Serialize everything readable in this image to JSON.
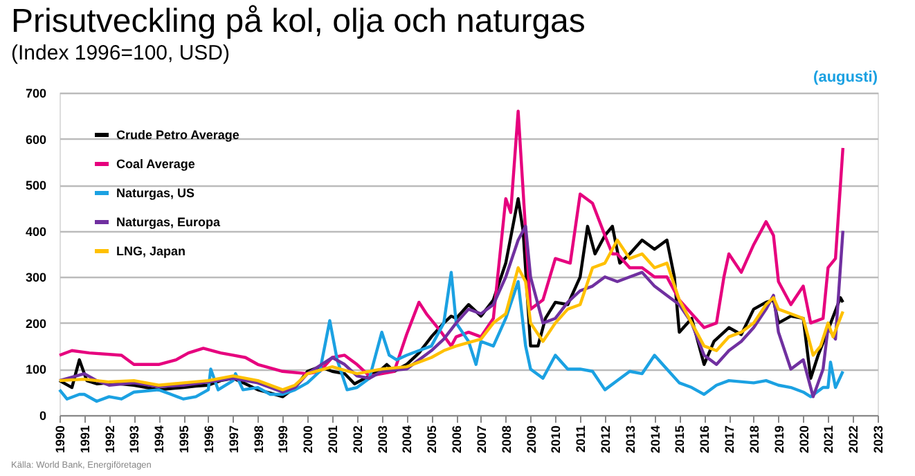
{
  "chart_data": {
    "type": "line",
    "title": "Prisutveckling på kol, olja och naturgas",
    "subtitle": "(Index 1996=100, USD)",
    "annotations": [
      "(augusti)",
      "Källa: World Bank, Energiföretagen"
    ],
    "xlim": [
      1990,
      2023
    ],
    "xticks": [
      1990,
      1991,
      1992,
      1993,
      1994,
      1995,
      1996,
      1997,
      1998,
      1999,
      2000,
      2001,
      2002,
      2003,
      2004,
      2005,
      2006,
      2007,
      2008,
      2009,
      2010,
      2011,
      2012,
      2013,
      2014,
      2015,
      2016,
      2017,
      2018,
      2019,
      2020,
      2021,
      2022,
      2023
    ],
    "ylim": [
      0,
      700
    ],
    "yticks": [
      0,
      100,
      200,
      300,
      400,
      500,
      600,
      700
    ],
    "grid": "y",
    "legend": "top left",
    "marker": "none",
    "line_style": "solid",
    "series": [
      {
        "name": "Crude Petro Average",
        "color": "#000000",
        "x": [
          1990,
          1990.5,
          1990.8,
          1991.1,
          1991.5,
          1992,
          1993,
          1994,
          1995,
          1995.5,
          1996,
          1996.5,
          1997,
          1997.5,
          1998,
          1998.5,
          1999,
          1999.5,
          2000,
          2000.5,
          2001,
          2001.5,
          2001.9,
          2002.5,
          2003,
          2003.2,
          2003.5,
          2004,
          2004.5,
          2005,
          2005.5,
          2005.8,
          2006,
          2006.5,
          2007,
          2007.5,
          2008,
          2008.5,
          2008.7,
          2009,
          2009.3,
          2009.6,
          2010,
          2010.5,
          2011,
          2011.3,
          2011.6,
          2012,
          2012.3,
          2012.6,
          2013,
          2013.5,
          2014,
          2014.5,
          2014.8,
          2015,
          2015.5,
          2016,
          2016.4,
          2017,
          2017.5,
          2018,
          2018.5,
          2018.8,
          2019,
          2019.5,
          2020,
          2020.3,
          2020.6,
          2021,
          2021.5,
          2021.6
        ],
        "values": [
          75,
          60,
          120,
          75,
          68,
          70,
          65,
          55,
          60,
          63,
          65,
          75,
          80,
          68,
          55,
          48,
          40,
          60,
          95,
          105,
          95,
          90,
          68,
          85,
          100,
          110,
          95,
          110,
          135,
          170,
          200,
          215,
          210,
          240,
          215,
          250,
          330,
          470,
          400,
          150,
          150,
          210,
          245,
          240,
          300,
          410,
          350,
          390,
          410,
          330,
          350,
          380,
          360,
          380,
          300,
          180,
          210,
          110,
          160,
          190,
          175,
          230,
          245,
          250,
          200,
          215,
          210,
          80,
          130,
          185,
          255,
          245
        ]
      },
      {
        "name": "Coal Average",
        "color": "#e6007e",
        "x": [
          1990,
          1990.5,
          1991.2,
          1992.5,
          1993,
          1994,
          1994.7,
          1995.2,
          1995.8,
          1996.5,
          1997,
          1997.5,
          1998,
          1999,
          2000,
          2000.5,
          2001,
          2001.5,
          2002,
          2002.5,
          2003,
          2003.5,
          2004,
          2004.5,
          2004.8,
          2005.4,
          2005.8,
          2006,
          2006.5,
          2007,
          2007.5,
          2008,
          2008.2,
          2008.5,
          2008.8,
          2009,
          2009.5,
          2010,
          2010.6,
          2011,
          2011.5,
          2012,
          2012.3,
          2012.5,
          2013,
          2013.5,
          2014,
          2014.5,
          2015,
          2015.5,
          2016,
          2016.5,
          2016.8,
          2017,
          2017.5,
          2018,
          2018.5,
          2018.8,
          2019,
          2019.5,
          2020,
          2020.3,
          2020.8,
          2021,
          2021.3,
          2021.6
        ],
        "values": [
          130,
          140,
          135,
          130,
          110,
          110,
          120,
          135,
          145,
          135,
          130,
          125,
          110,
          95,
          90,
          95,
          125,
          130,
          110,
          85,
          90,
          95,
          175,
          245,
          220,
          180,
          150,
          170,
          180,
          170,
          210,
          470,
          440,
          660,
          400,
          230,
          250,
          340,
          330,
          480,
          460,
          390,
          350,
          350,
          320,
          320,
          300,
          300,
          250,
          220,
          190,
          200,
          300,
          350,
          310,
          370,
          420,
          390,
          290,
          240,
          280,
          200,
          210,
          320,
          340,
          580
        ]
      },
      {
        "name": "Naturgas, US",
        "color": "#1ba1e2",
        "x": [
          1990,
          1990.3,
          1990.8,
          1991,
          1991.5,
          1992,
          1992.5,
          1993,
          1994,
          1994.5,
          1995,
          1995.5,
          1996,
          1996.1,
          1996.4,
          1997,
          1997.1,
          1997.4,
          1998,
          1998.5,
          1999,
          1999.5,
          2000,
          2000.5,
          2000.9,
          2001.2,
          2001.6,
          2002,
          2002.5,
          2003,
          2003.3,
          2003.6,
          2004,
          2004.5,
          2005,
          2005.5,
          2005.8,
          2006,
          2006.5,
          2006.8,
          2007,
          2007.5,
          2008,
          2008.5,
          2008.8,
          2009,
          2009.5,
          2010,
          2010.5,
          2011,
          2011.5,
          2012,
          2012.5,
          2013,
          2013.5,
          2014,
          2014.5,
          2015,
          2015.5,
          2016,
          2016.5,
          2017,
          2018,
          2018.5,
          2019,
          2019.5,
          2020,
          2020.3,
          2020.8,
          2021,
          2021.1,
          2021.3,
          2021.6
        ],
        "values": [
          55,
          35,
          45,
          45,
          30,
          40,
          35,
          50,
          55,
          45,
          35,
          40,
          55,
          100,
          55,
          75,
          90,
          55,
          60,
          45,
          45,
          55,
          70,
          95,
          205,
          120,
          55,
          60,
          80,
          180,
          130,
          120,
          130,
          140,
          150,
          200,
          310,
          200,
          160,
          110,
          160,
          150,
          210,
          290,
          150,
          100,
          80,
          130,
          100,
          100,
          95,
          55,
          75,
          95,
          90,
          130,
          100,
          70,
          60,
          45,
          65,
          75,
          70,
          75,
          65,
          60,
          50,
          40,
          60,
          60,
          115,
          60,
          95
        ]
      },
      {
        "name": "Naturgas, Europa",
        "color": "#7030a0",
        "x": [
          1990,
          1991,
          1991.5,
          1992,
          1993,
          1994,
          1995,
          1996,
          1997,
          1998,
          1999,
          1999.5,
          2000,
          2001,
          2001.5,
          2002,
          2002.5,
          2003,
          2004,
          2004.5,
          2005,
          2005.5,
          2006,
          2006.5,
          2007,
          2007.5,
          2008,
          2008.5,
          2008.8,
          2009,
          2009.5,
          2010,
          2010.5,
          2011,
          2011.5,
          2012,
          2012.5,
          2013,
          2013.5,
          2014,
          2014.5,
          2015,
          2015.5,
          2016,
          2016.5,
          2017,
          2017.5,
          2018,
          2018.5,
          2018.8,
          2019,
          2019.5,
          2020,
          2020.4,
          2020.8,
          2021,
          2021.3,
          2021.6
        ],
        "values": [
          75,
          90,
          75,
          65,
          70,
          62,
          65,
          72,
          80,
          70,
          50,
          60,
          90,
          125,
          110,
          85,
          80,
          95,
          100,
          120,
          140,
          165,
          200,
          230,
          220,
          240,
          300,
          380,
          410,
          300,
          200,
          210,
          245,
          270,
          280,
          300,
          290,
          300,
          310,
          280,
          260,
          240,
          200,
          130,
          110,
          140,
          160,
          190,
          230,
          260,
          180,
          100,
          120,
          40,
          100,
          190,
          165,
          400
        ]
      },
      {
        "name": "LNG, Japan",
        "color": "#ffc000",
        "x": [
          1990,
          1991,
          1992,
          1993,
          1994,
          1995,
          1996,
          1997,
          1998,
          1999,
          1999.5,
          2000,
          2001,
          2002,
          2003,
          2004,
          2005,
          2005.5,
          2006,
          2007,
          2007.5,
          2008,
          2008.5,
          2008.8,
          2009,
          2009.5,
          2010,
          2010.5,
          2011,
          2011.5,
          2012,
          2012.5,
          2013,
          2013.5,
          2014,
          2014.5,
          2015,
          2015.5,
          2016,
          2016.5,
          2017,
          2017.5,
          2018,
          2018.5,
          2018.8,
          2019,
          2019.5,
          2020,
          2020.4,
          2020.7,
          2021,
          2021.2,
          2021.6
        ],
        "values": [
          75,
          78,
          72,
          75,
          65,
          70,
          75,
          85,
          75,
          55,
          65,
          90,
          105,
          90,
          100,
          105,
          125,
          140,
          150,
          165,
          200,
          220,
          320,
          290,
          200,
          160,
          200,
          230,
          240,
          320,
          330,
          380,
          340,
          350,
          320,
          330,
          250,
          200,
          150,
          140,
          170,
          180,
          200,
          240,
          255,
          230,
          220,
          210,
          130,
          150,
          200,
          170,
          225
        ]
      }
    ]
  }
}
